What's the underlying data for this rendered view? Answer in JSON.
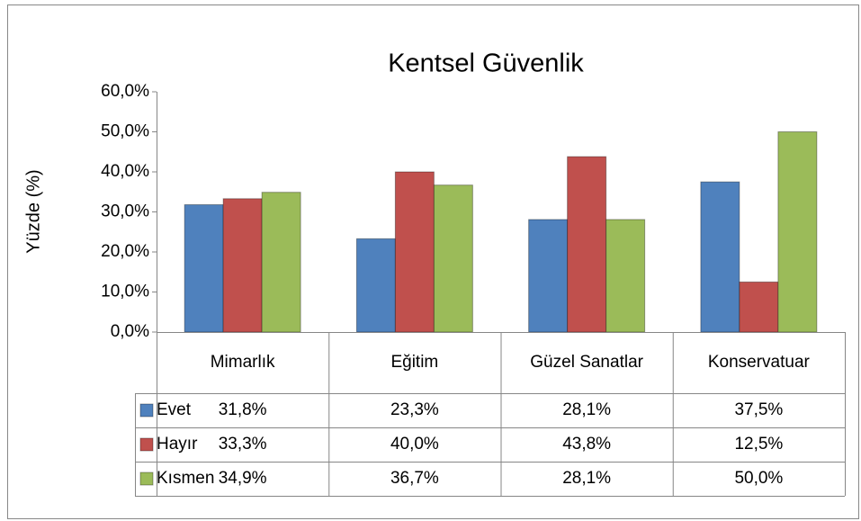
{
  "chart_data": {
    "type": "bar",
    "title": "Kentsel Güvenlik",
    "y_label": "Yüzde (%)",
    "categories": [
      "Mimarlık",
      "Eğitim",
      "Güzel Sanatlar",
      "Konservatuar"
    ],
    "series": [
      {
        "name": "Evet",
        "color": "#4f81bd",
        "values": [
          31.8,
          23.3,
          28.1,
          37.5
        ],
        "value_labels": [
          "31,8%",
          "23,3%",
          "28,1%",
          "37,5%"
        ]
      },
      {
        "name": "Hayır",
        "color": "#c0504d",
        "values": [
          33.3,
          40.0,
          43.8,
          12.5
        ],
        "value_labels": [
          "33,3%",
          "40,0%",
          "43,8%",
          "12,5%"
        ]
      },
      {
        "name": "Kısmen",
        "color": "#9bbb59",
        "values": [
          34.9,
          36.7,
          28.1,
          50.0
        ],
        "value_labels": [
          "34,9%",
          "36,7%",
          "28,1%",
          "50,0%"
        ]
      }
    ],
    "ylim": [
      0,
      60
    ],
    "yticks": [
      {
        "value": 0,
        "label": "0,0%"
      },
      {
        "value": 10,
        "label": "10,0%"
      },
      {
        "value": 20,
        "label": "20,0%"
      },
      {
        "value": 30,
        "label": "30,0%"
      },
      {
        "value": 40,
        "label": "40,0%"
      },
      {
        "value": 50,
        "label": "50,0%"
      },
      {
        "value": 60,
        "label": "60,0%"
      }
    ],
    "data_table": true
  }
}
